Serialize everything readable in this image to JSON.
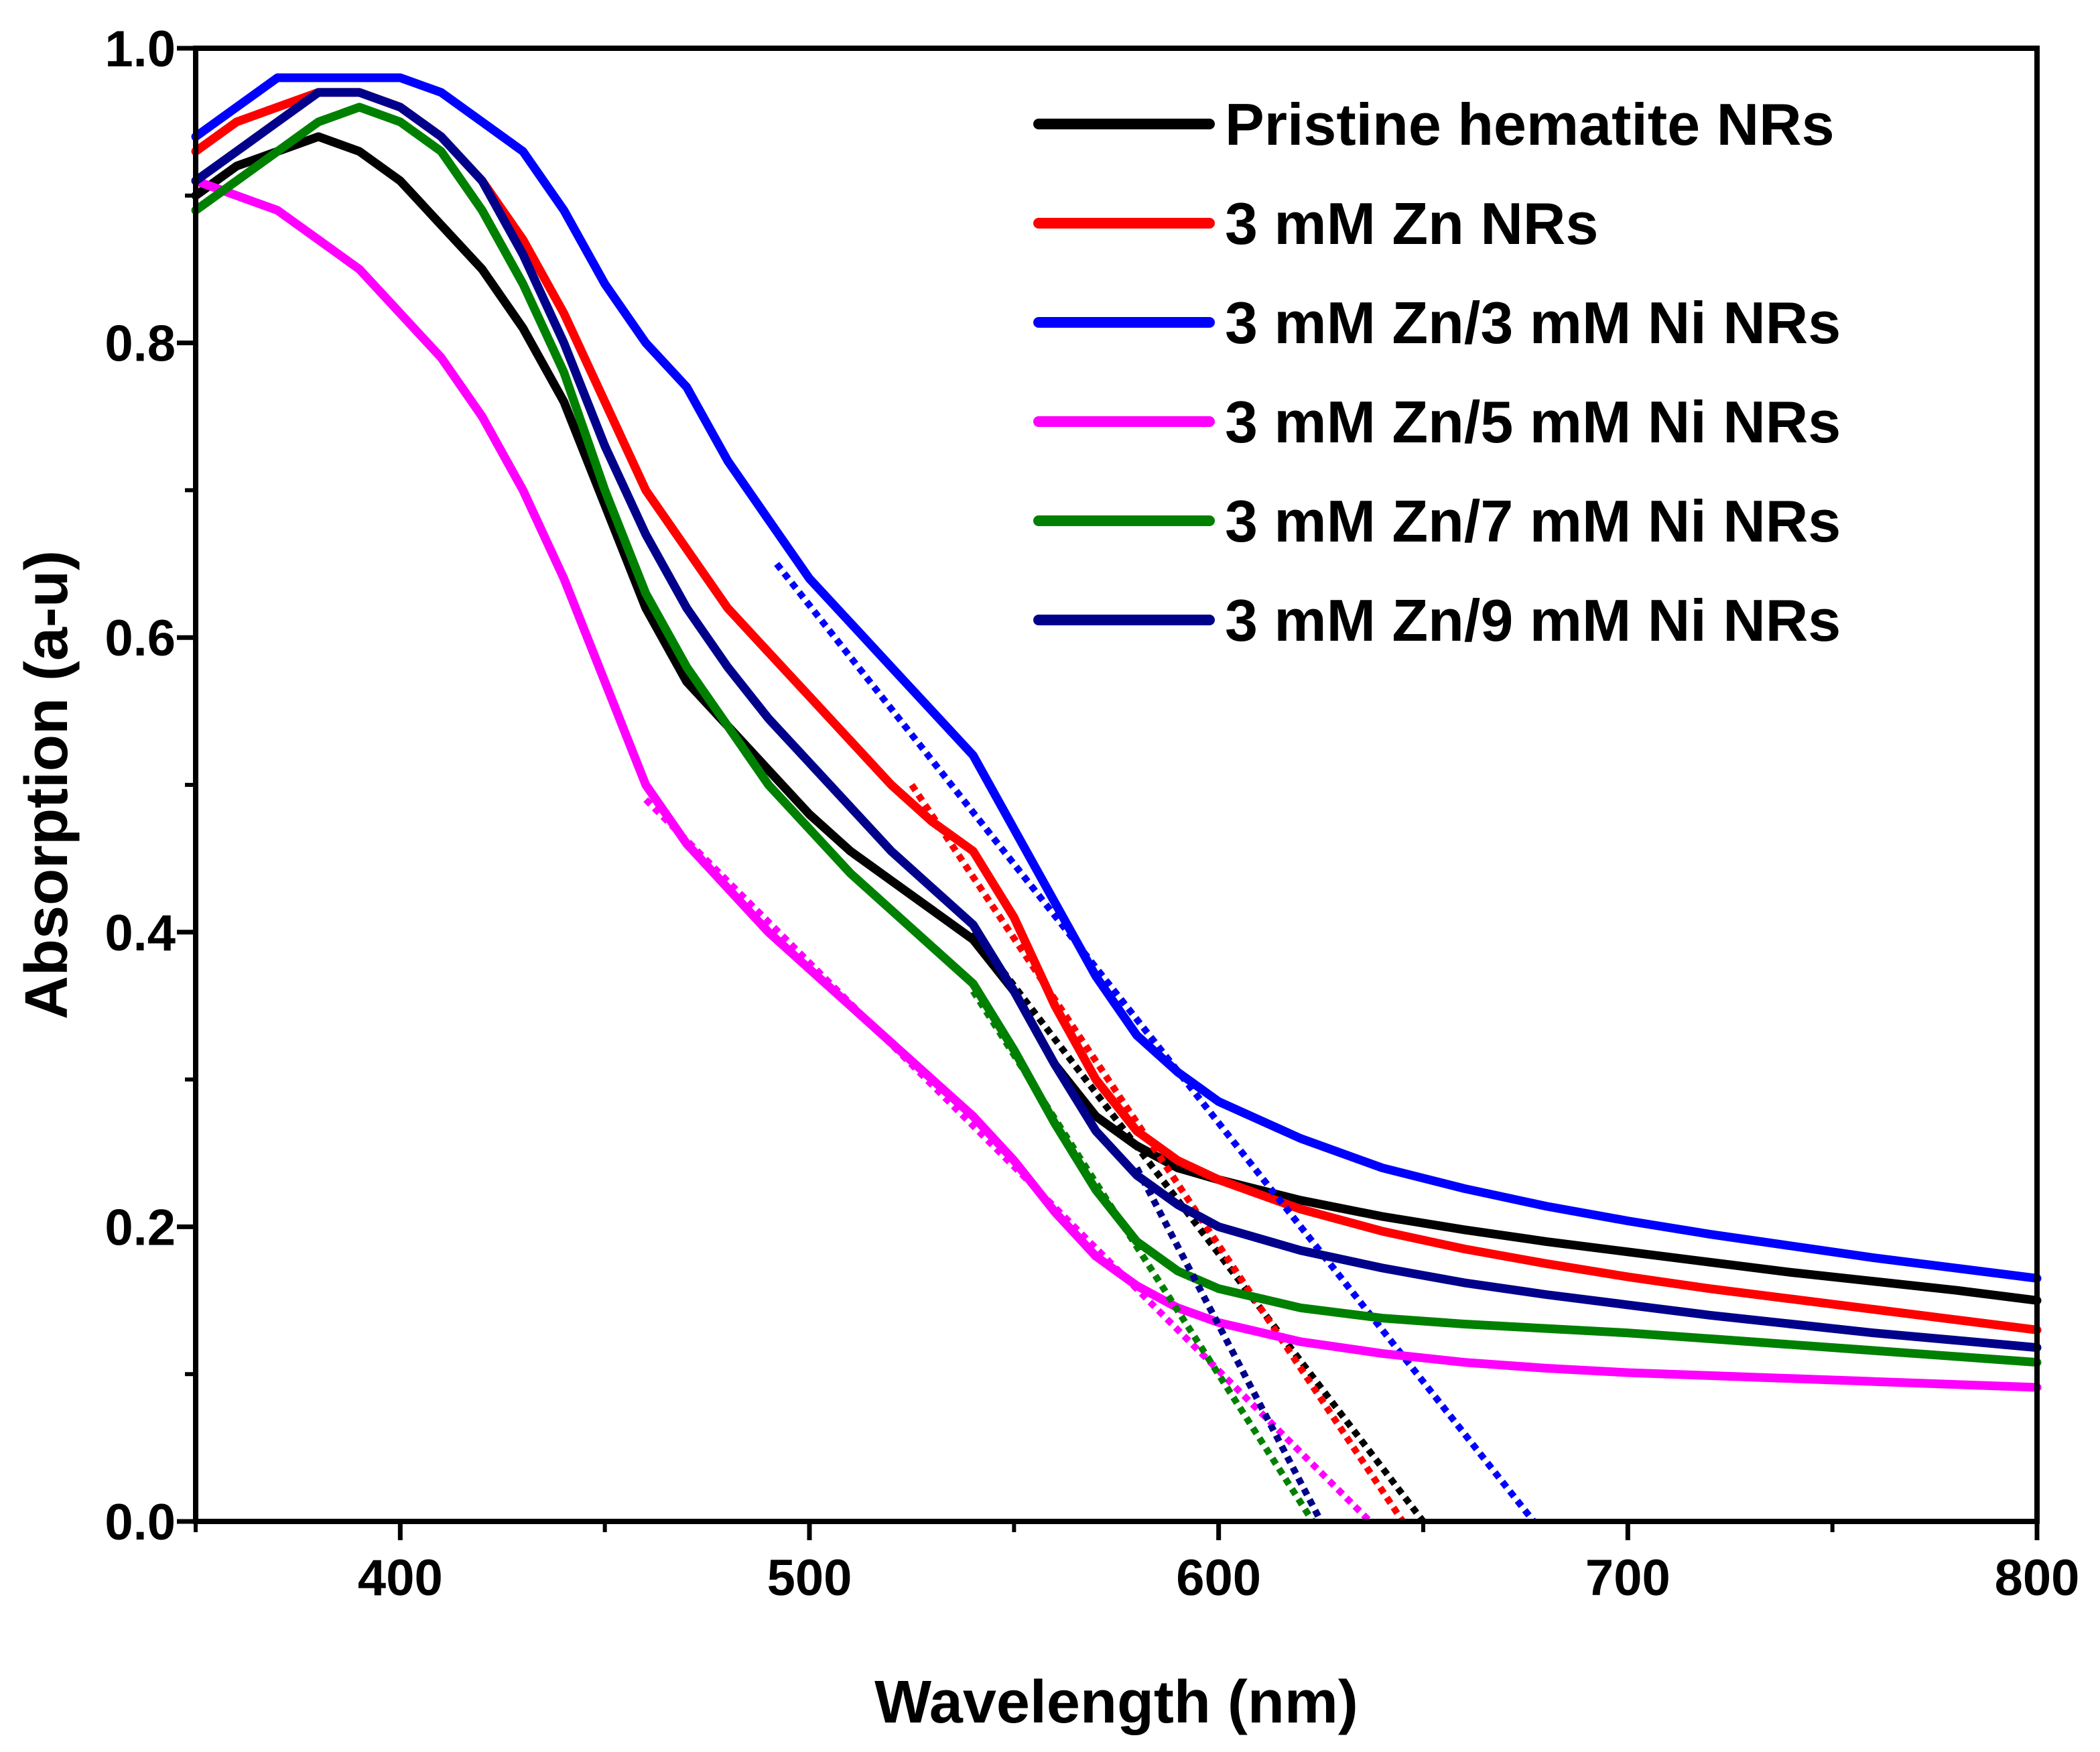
{
  "chart_data": {
    "type": "line",
    "xlabel": "Wavelength (nm)",
    "ylabel": "Absorption (a-u)",
    "xlim": [
      350,
      800
    ],
    "ylim": [
      0.0,
      1.0
    ],
    "xticks": [
      400,
      500,
      600,
      700,
      800
    ],
    "xtick_labels": [
      "400",
      "500",
      "600",
      "700",
      "800"
    ],
    "yticks": [
      0.0,
      0.2,
      0.4,
      0.6,
      0.8,
      1.0
    ],
    "ytick_labels": [
      "0.0",
      "0.2",
      "0.4",
      "0.6",
      "0.8",
      "1.0"
    ],
    "legend_position": "top-right",
    "series": [
      {
        "name": "Pristine hematite NRs",
        "color": "#000000",
        "points": [
          [
            350,
            0.9
          ],
          [
            360,
            0.92
          ],
          [
            370,
            0.93
          ],
          [
            380,
            0.94
          ],
          [
            390,
            0.93
          ],
          [
            400,
            0.91
          ],
          [
            410,
            0.88
          ],
          [
            420,
            0.85
          ],
          [
            430,
            0.81
          ],
          [
            440,
            0.76
          ],
          [
            450,
            0.69
          ],
          [
            460,
            0.62
          ],
          [
            470,
            0.57
          ],
          [
            480,
            0.54
          ],
          [
            490,
            0.51
          ],
          [
            500,
            0.48
          ],
          [
            510,
            0.455
          ],
          [
            520,
            0.435
          ],
          [
            530,
            0.415
          ],
          [
            540,
            0.395
          ],
          [
            550,
            0.36
          ],
          [
            560,
            0.31
          ],
          [
            570,
            0.275
          ],
          [
            580,
            0.255
          ],
          [
            590,
            0.24
          ],
          [
            600,
            0.232
          ],
          [
            620,
            0.218
          ],
          [
            640,
            0.207
          ],
          [
            660,
            0.198
          ],
          [
            680,
            0.19
          ],
          [
            700,
            0.183
          ],
          [
            720,
            0.176
          ],
          [
            740,
            0.169
          ],
          [
            760,
            0.163
          ],
          [
            780,
            0.157
          ],
          [
            800,
            0.15
          ]
        ],
        "tangent": [
          [
            540,
            0.4
          ],
          [
            650,
            0.0
          ]
        ]
      },
      {
        "name": "3 mM Zn NRs",
        "color": "#ff0000",
        "points": [
          [
            350,
            0.93
          ],
          [
            360,
            0.95
          ],
          [
            370,
            0.96
          ],
          [
            380,
            0.97
          ],
          [
            390,
            0.97
          ],
          [
            400,
            0.96
          ],
          [
            410,
            0.94
          ],
          [
            420,
            0.91
          ],
          [
            430,
            0.87
          ],
          [
            440,
            0.82
          ],
          [
            450,
            0.76
          ],
          [
            460,
            0.7
          ],
          [
            470,
            0.66
          ],
          [
            480,
            0.62
          ],
          [
            490,
            0.59
          ],
          [
            500,
            0.56
          ],
          [
            510,
            0.53
          ],
          [
            520,
            0.5
          ],
          [
            530,
            0.475
          ],
          [
            540,
            0.455
          ],
          [
            550,
            0.41
          ],
          [
            560,
            0.35
          ],
          [
            570,
            0.3
          ],
          [
            580,
            0.265
          ],
          [
            590,
            0.245
          ],
          [
            600,
            0.232
          ],
          [
            620,
            0.212
          ],
          [
            640,
            0.197
          ],
          [
            660,
            0.185
          ],
          [
            680,
            0.175
          ],
          [
            700,
            0.166
          ],
          [
            720,
            0.158
          ],
          [
            740,
            0.151
          ],
          [
            760,
            0.144
          ],
          [
            780,
            0.137
          ],
          [
            800,
            0.13
          ]
        ],
        "tangent": [
          [
            525,
            0.5
          ],
          [
            645,
            0.0
          ]
        ]
      },
      {
        "name": "3 mM Zn/3 mM Ni NRs",
        "color": "#0000ff",
        "points": [
          [
            350,
            0.94
          ],
          [
            360,
            0.96
          ],
          [
            370,
            0.98
          ],
          [
            380,
            0.98
          ],
          [
            390,
            0.98
          ],
          [
            400,
            0.98
          ],
          [
            410,
            0.97
          ],
          [
            420,
            0.95
          ],
          [
            430,
            0.93
          ],
          [
            440,
            0.89
          ],
          [
            450,
            0.84
          ],
          [
            460,
            0.8
          ],
          [
            470,
            0.77
          ],
          [
            480,
            0.72
          ],
          [
            490,
            0.68
          ],
          [
            500,
            0.64
          ],
          [
            510,
            0.61
          ],
          [
            520,
            0.58
          ],
          [
            530,
            0.55
          ],
          [
            540,
            0.52
          ],
          [
            550,
            0.47
          ],
          [
            560,
            0.42
          ],
          [
            570,
            0.37
          ],
          [
            580,
            0.33
          ],
          [
            590,
            0.305
          ],
          [
            600,
            0.285
          ],
          [
            620,
            0.26
          ],
          [
            640,
            0.24
          ],
          [
            660,
            0.226
          ],
          [
            680,
            0.214
          ],
          [
            700,
            0.204
          ],
          [
            720,
            0.195
          ],
          [
            740,
            0.187
          ],
          [
            760,
            0.179
          ],
          [
            780,
            0.172
          ],
          [
            800,
            0.165
          ]
        ],
        "tangent": [
          [
            492,
            0.65
          ],
          [
            677,
            0.0
          ]
        ]
      },
      {
        "name": "3 mM Zn/5 mM Ni NRs",
        "color": "#ff00ff",
        "points": [
          [
            350,
            0.91
          ],
          [
            360,
            0.9
          ],
          [
            370,
            0.89
          ],
          [
            380,
            0.87
          ],
          [
            390,
            0.85
          ],
          [
            400,
            0.82
          ],
          [
            410,
            0.79
          ],
          [
            420,
            0.75
          ],
          [
            430,
            0.7
          ],
          [
            440,
            0.64
          ],
          [
            450,
            0.57
          ],
          [
            460,
            0.5
          ],
          [
            470,
            0.46
          ],
          [
            480,
            0.43
          ],
          [
            490,
            0.4
          ],
          [
            500,
            0.375
          ],
          [
            510,
            0.35
          ],
          [
            520,
            0.325
          ],
          [
            530,
            0.3
          ],
          [
            540,
            0.275
          ],
          [
            550,
            0.245
          ],
          [
            560,
            0.21
          ],
          [
            570,
            0.18
          ],
          [
            580,
            0.16
          ],
          [
            590,
            0.145
          ],
          [
            600,
            0.135
          ],
          [
            620,
            0.122
          ],
          [
            640,
            0.114
          ],
          [
            660,
            0.108
          ],
          [
            680,
            0.104
          ],
          [
            700,
            0.101
          ],
          [
            720,
            0.099
          ],
          [
            740,
            0.097
          ],
          [
            760,
            0.095
          ],
          [
            780,
            0.093
          ],
          [
            800,
            0.091
          ]
        ],
        "tangent": [
          [
            460,
            0.49
          ],
          [
            637,
            0.0
          ]
        ]
      },
      {
        "name": "3 mM Zn/7 mM Ni NRs",
        "color": "#008000",
        "points": [
          [
            350,
            0.89
          ],
          [
            360,
            0.91
          ],
          [
            370,
            0.93
          ],
          [
            380,
            0.95
          ],
          [
            390,
            0.96
          ],
          [
            400,
            0.95
          ],
          [
            410,
            0.93
          ],
          [
            420,
            0.89
          ],
          [
            430,
            0.84
          ],
          [
            440,
            0.78
          ],
          [
            450,
            0.7
          ],
          [
            460,
            0.63
          ],
          [
            470,
            0.58
          ],
          [
            480,
            0.54
          ],
          [
            490,
            0.5
          ],
          [
            500,
            0.47
          ],
          [
            510,
            0.44
          ],
          [
            520,
            0.415
          ],
          [
            530,
            0.39
          ],
          [
            540,
            0.365
          ],
          [
            550,
            0.32
          ],
          [
            560,
            0.27
          ],
          [
            570,
            0.225
          ],
          [
            580,
            0.19
          ],
          [
            590,
            0.17
          ],
          [
            600,
            0.158
          ],
          [
            620,
            0.145
          ],
          [
            640,
            0.138
          ],
          [
            660,
            0.134
          ],
          [
            680,
            0.131
          ],
          [
            700,
            0.128
          ],
          [
            720,
            0.124
          ],
          [
            740,
            0.12
          ],
          [
            760,
            0.116
          ],
          [
            780,
            0.112
          ],
          [
            800,
            0.108
          ]
        ],
        "tangent": [
          [
            540,
            0.36
          ],
          [
            623,
            0.0
          ]
        ]
      },
      {
        "name": "3 mM Zn/9 mM Ni NRs",
        "color": "#00008b",
        "points": [
          [
            350,
            0.91
          ],
          [
            360,
            0.93
          ],
          [
            370,
            0.95
          ],
          [
            380,
            0.97
          ],
          [
            390,
            0.97
          ],
          [
            400,
            0.96
          ],
          [
            410,
            0.94
          ],
          [
            420,
            0.91
          ],
          [
            430,
            0.86
          ],
          [
            440,
            0.8
          ],
          [
            450,
            0.73
          ],
          [
            460,
            0.67
          ],
          [
            470,
            0.62
          ],
          [
            480,
            0.58
          ],
          [
            490,
            0.545
          ],
          [
            500,
            0.515
          ],
          [
            510,
            0.485
          ],
          [
            520,
            0.455
          ],
          [
            530,
            0.43
          ],
          [
            540,
            0.405
          ],
          [
            550,
            0.36
          ],
          [
            560,
            0.31
          ],
          [
            570,
            0.265
          ],
          [
            580,
            0.235
          ],
          [
            590,
            0.215
          ],
          [
            600,
            0.2
          ],
          [
            620,
            0.184
          ],
          [
            640,
            0.172
          ],
          [
            660,
            0.162
          ],
          [
            680,
            0.154
          ],
          [
            700,
            0.147
          ],
          [
            720,
            0.14
          ],
          [
            740,
            0.134
          ],
          [
            760,
            0.128
          ],
          [
            780,
            0.123
          ],
          [
            800,
            0.118
          ]
        ],
        "tangent": [
          [
            580,
            0.24
          ],
          [
            625,
            0.0
          ]
        ]
      }
    ]
  }
}
